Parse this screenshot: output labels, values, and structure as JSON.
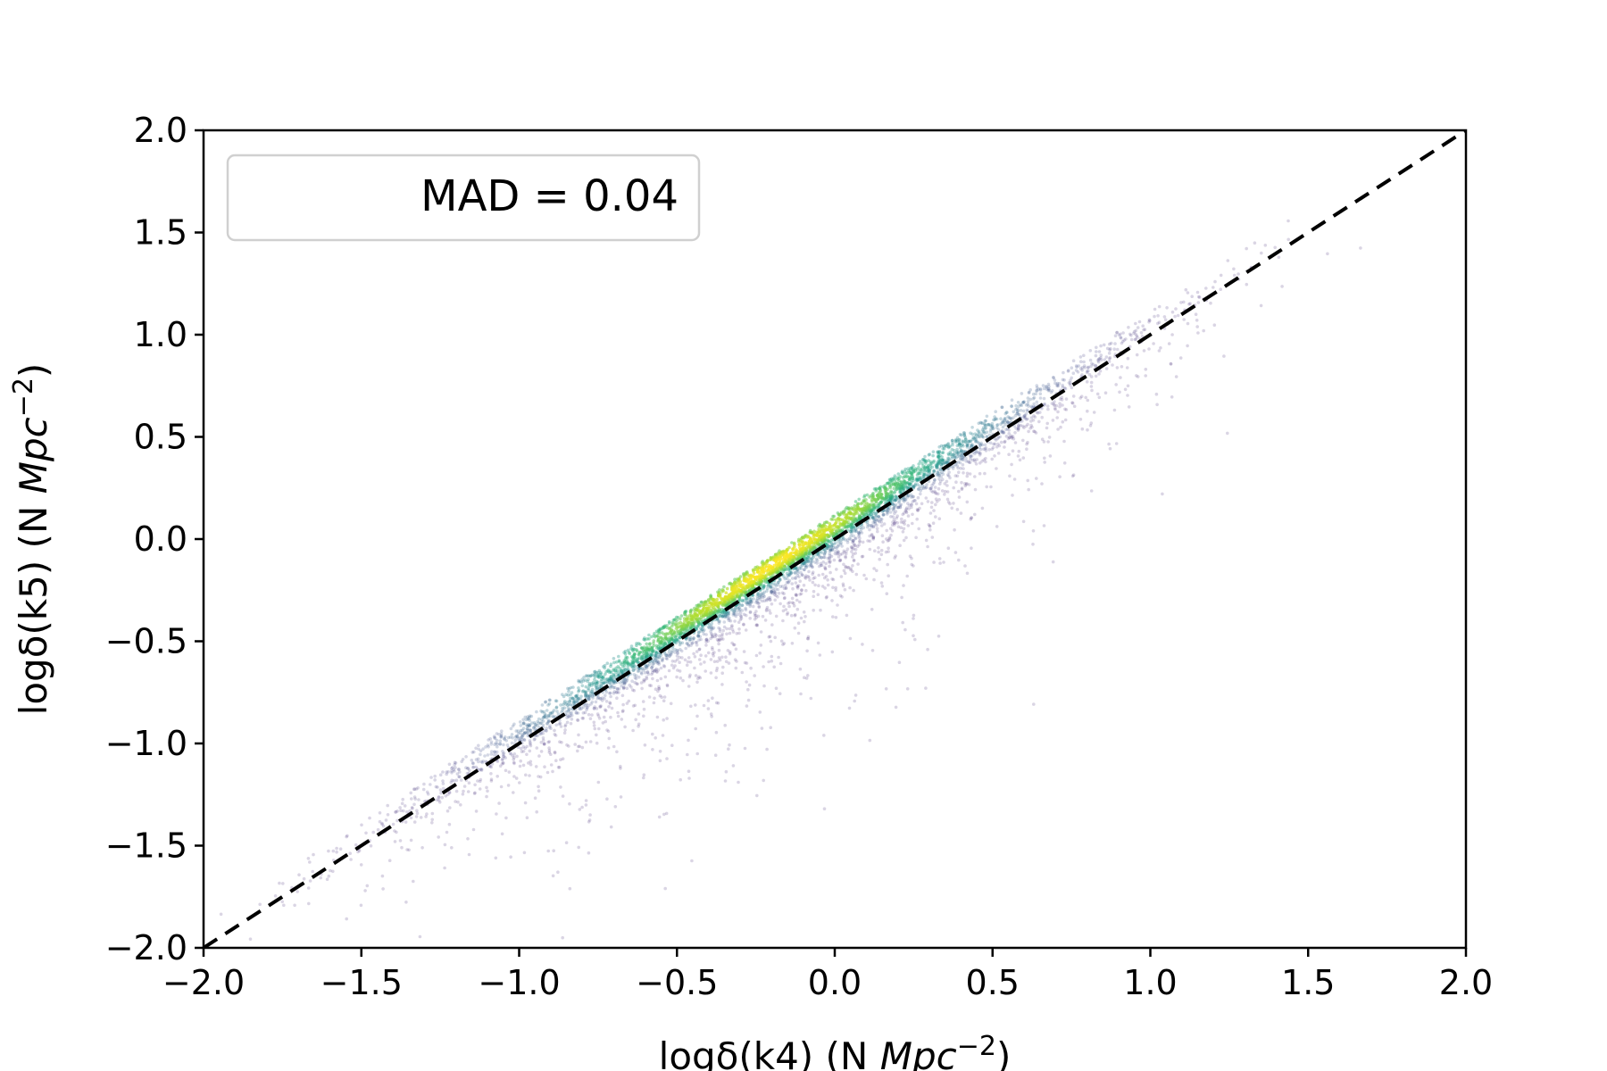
{
  "chart_data": {
    "type": "scatter",
    "title": "",
    "xlabel": {
      "prefix": "logδ(k4) (N ",
      "unit_italic": "Mpc",
      "exponent": "−2",
      "suffix": ")"
    },
    "ylabel": {
      "prefix": "logδ(k5) (N ",
      "unit_italic": "Mpc",
      "exponent": "−2",
      "suffix": ")"
    },
    "xlim": [
      -2.0,
      2.0
    ],
    "ylim": [
      -2.0,
      2.0
    ],
    "xticks": [
      -2.0,
      -1.5,
      -1.0,
      -0.5,
      0.0,
      0.5,
      1.0,
      1.5,
      2.0
    ],
    "yticks": [
      -2.0,
      -1.5,
      -1.0,
      -0.5,
      0.0,
      0.5,
      1.0,
      1.5,
      2.0
    ],
    "xtick_labels": [
      "−2.0",
      "−1.5",
      "−1.0",
      "−0.5",
      "0.0",
      "0.5",
      "1.0",
      "1.5",
      "2.0"
    ],
    "ytick_labels": [
      "−2.0",
      "−1.5",
      "−1.0",
      "−0.5",
      "0.0",
      "0.5",
      "1.0",
      "1.5",
      "2.0"
    ],
    "grid": false,
    "colormap": "viridis",
    "density_peak": {
      "x": -0.2,
      "y": -0.1
    },
    "reference_line": {
      "x": [
        -2.0,
        2.0
      ],
      "y": [
        -2.0,
        2.0
      ],
      "style": "dashed",
      "color": "#000000"
    },
    "legend": {
      "text": "MAD = 0.04",
      "location": "upper-left"
    },
    "point_color_low": "#472c7a",
    "point_color_high": "#fde725"
  }
}
